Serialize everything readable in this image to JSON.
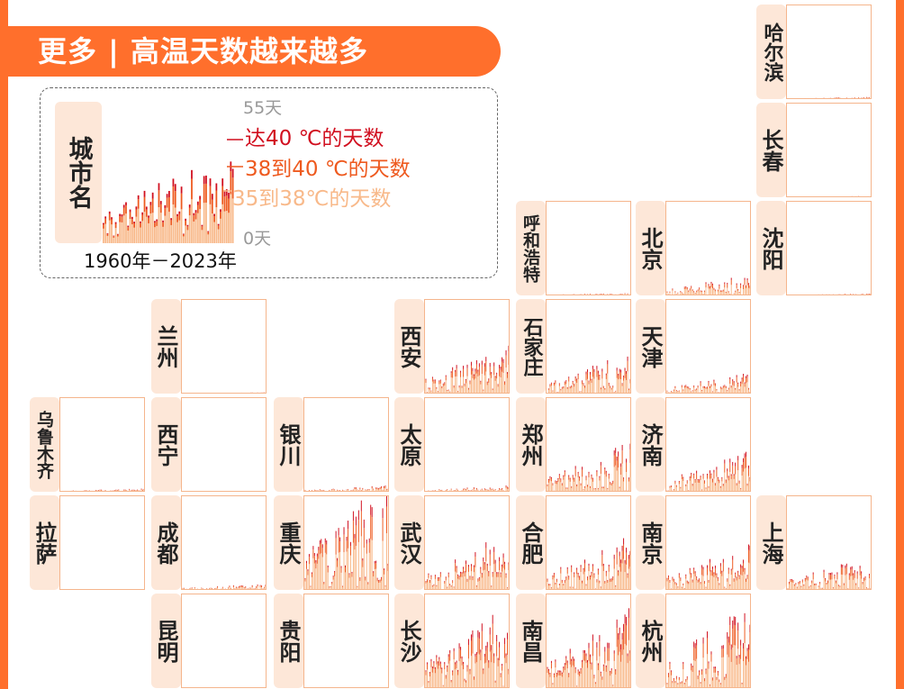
{
  "title": "更多 | 高温天数越来越多",
  "colors": {
    "brand": "#ff6f2c",
    "tile": "#fde7d8",
    "border": "#f5b58c",
    "level40": "#d10f1f",
    "level38": "#ee5a1f",
    "level35": "#f8b98a"
  },
  "legend": {
    "city_placeholder": "城市名",
    "max_label": "55天",
    "min_label": "0天",
    "period": "1960年－2023年",
    "level_40": "达40 ℃的天数",
    "level_38": "38到40 ℃的天数",
    "level_35": "35到38℃的天数"
  },
  "chart_data": {
    "type": "bar",
    "stacked": true,
    "x_range": [
      1960,
      2023
    ],
    "ylim": [
      0,
      55
    ],
    "series_names": [
      "35到38℃的天数",
      "38到40 ℃的天数",
      "达40 ℃的天数"
    ],
    "cities": [
      {
        "name": "哈尔滨",
        "level": 0.5
      },
      {
        "name": "长春",
        "level": 0.3
      },
      {
        "name": "沈阳",
        "level": 0.5
      },
      {
        "name": "呼和浩特",
        "level": 0.6
      },
      {
        "name": "北京",
        "level": 5
      },
      {
        "name": "兰州",
        "level": 0.3
      },
      {
        "name": "西安",
        "level": 12
      },
      {
        "name": "石家庄",
        "level": 10
      },
      {
        "name": "天津",
        "level": 5
      },
      {
        "name": "乌鲁木齐",
        "level": 0.8
      },
      {
        "name": "西宁",
        "level": 0
      },
      {
        "name": "银川",
        "level": 1.5
      },
      {
        "name": "太原",
        "level": 1.5
      },
      {
        "name": "郑州",
        "level": 12
      },
      {
        "name": "济南",
        "level": 10
      },
      {
        "name": "拉萨",
        "level": 0
      },
      {
        "name": "成都",
        "level": 1.5
      },
      {
        "name": "重庆",
        "level": 28
      },
      {
        "name": "武汉",
        "level": 14
      },
      {
        "name": "合肥",
        "level": 13
      },
      {
        "name": "南京",
        "level": 11
      },
      {
        "name": "上海",
        "level": 8
      },
      {
        "name": "昆明",
        "level": 0
      },
      {
        "name": "贵阳",
        "level": 0
      },
      {
        "name": "长沙",
        "level": 20
      },
      {
        "name": "南昌",
        "level": 19
      },
      {
        "name": "杭州",
        "level": 21
      }
    ]
  }
}
